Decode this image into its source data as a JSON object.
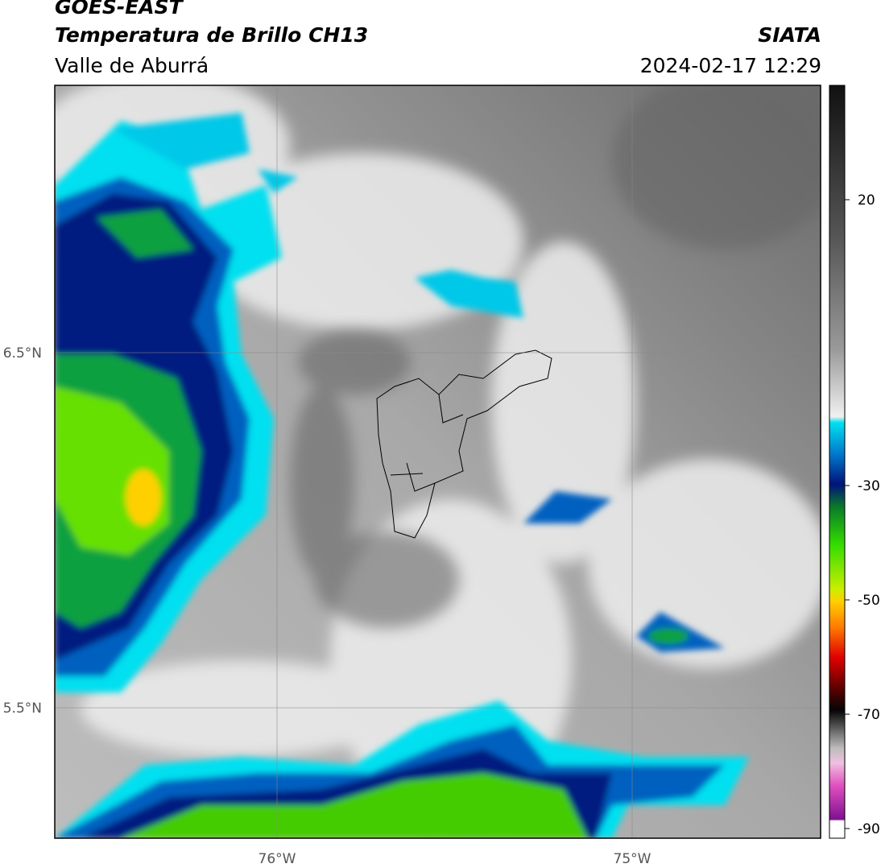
{
  "header": {
    "title": "GOES-EAST",
    "subtitle": "Temperatura de Brillo CH13",
    "region": "Valle de Aburrá",
    "source": "SIATA",
    "timestamp": "2024-02-17 12:29"
  },
  "map": {
    "lat_ticks": [
      {
        "value": 6.5,
        "label": "6.5°N"
      },
      {
        "value": 5.5,
        "label": "5.5°N"
      }
    ],
    "lon_ticks": [
      {
        "value": -76,
        "label": "76°W"
      },
      {
        "value": -75,
        "label": "75°W"
      }
    ],
    "grid": true
  },
  "colorbar": {
    "ticks": [
      20,
      -30,
      -50,
      -70,
      -90
    ]
  }
}
